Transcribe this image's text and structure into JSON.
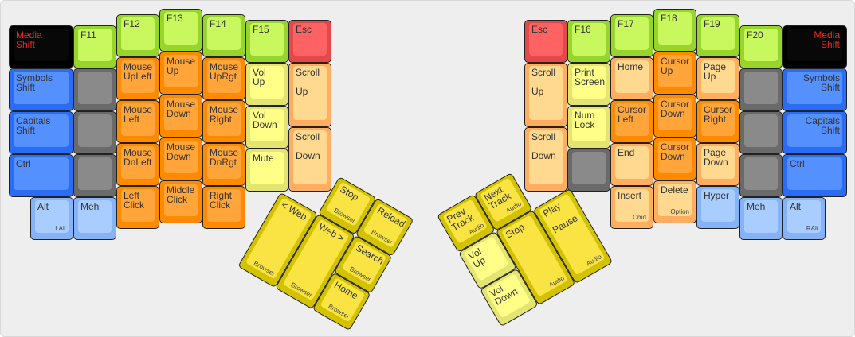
{
  "palette": {
    "green": [
      "#97d52c",
      "#c8f75e"
    ],
    "orange": [
      "#ff8a00",
      "#ffa53a"
    ],
    "lightorange": [
      "#ffae60",
      "#ffd98f"
    ],
    "lightyellow": [
      "#e4e470",
      "#ffff88"
    ],
    "blue": [
      "#2a6cf6",
      "#5590ff"
    ],
    "lightblue": [
      "#86b2f8",
      "#a9cdff"
    ],
    "grey": [
      "#6a6a6a",
      "#8a8a8a"
    ],
    "black": [
      "#000000",
      "#080808"
    ],
    "red": [
      "#e44848",
      "#ff6262"
    ],
    "yellow": [
      "#d2c200",
      "#f9e443"
    ],
    "black_text": "#e8281e"
  },
  "left_hand": {
    "keys": [
      {
        "label": "Media\nShift",
        "color": "black"
      },
      {
        "label": "Symbols\nShift",
        "color": "blue"
      },
      {
        "label": "Capitals\nShift",
        "color": "blue"
      },
      {
        "label": "Ctrl",
        "color": "blue"
      },
      {
        "label": "Alt",
        "sub": "LAlt",
        "color": "lightblue"
      },
      {
        "label": "F11",
        "color": "green"
      },
      {
        "label": "",
        "color": "grey"
      },
      {
        "label": "",
        "color": "grey"
      },
      {
        "label": "",
        "color": "grey"
      },
      {
        "label": "Meh",
        "color": "lightblue"
      },
      {
        "label": "F12",
        "color": "green"
      },
      {
        "label": "Mouse\nUpLeft",
        "color": "orange"
      },
      {
        "label": "Mouse\nLeft",
        "color": "orange"
      },
      {
        "label": "Mouse\nDnLeft",
        "color": "orange"
      },
      {
        "label": "Left\nClick",
        "color": "orange"
      },
      {
        "label": "F13",
        "color": "green"
      },
      {
        "label": "Mouse\nUp",
        "color": "orange"
      },
      {
        "label": "Mouse\nDown",
        "color": "orange"
      },
      {
        "label": "Mouse\nDown",
        "color": "orange"
      },
      {
        "label": "Middle\nClick",
        "color": "orange"
      },
      {
        "label": "F14",
        "color": "green"
      },
      {
        "label": "Mouse\nUpRgt",
        "color": "orange"
      },
      {
        "label": "Mouse\nRight",
        "color": "orange"
      },
      {
        "label": "Mouse\nDnRgt",
        "color": "orange"
      },
      {
        "label": "Right\nClick",
        "color": "orange"
      },
      {
        "label": "F15",
        "color": "green"
      },
      {
        "label": "Vol\nUp",
        "color": "lightyellow"
      },
      {
        "label": "Vol\nDown",
        "color": "lightyellow"
      },
      {
        "label": "Mute",
        "color": "lightyellow"
      },
      {
        "label": "Esc",
        "color": "red"
      },
      {
        "label": "Scroll\n\nUp",
        "color": "lightorange"
      },
      {
        "label": "Scroll\n\nDown",
        "color": "lightorange"
      }
    ],
    "thumb": [
      {
        "label": "Stop",
        "sub": "Browser",
        "color": "yellow"
      },
      {
        "label": "Reload",
        "sub": "Browser",
        "color": "yellow"
      },
      {
        "label": "< Web",
        "sub": "Browser",
        "color": "yellow"
      },
      {
        "label": "Web >",
        "sub": "Browser",
        "color": "yellow"
      },
      {
        "label": "Search",
        "sub": "Browser",
        "color": "yellow"
      },
      {
        "label": "Home",
        "sub": "Browser",
        "color": "yellow"
      }
    ]
  },
  "right_hand": {
    "keys": [
      {
        "label": "Esc",
        "color": "red"
      },
      {
        "label": "Scroll\n\nUp",
        "color": "lightorange"
      },
      {
        "label": "Scroll\n\nDown",
        "color": "lightorange"
      },
      {
        "label": "F16",
        "color": "green"
      },
      {
        "label": "Print\nScreen",
        "color": "lightyellow"
      },
      {
        "label": "Num\nLock",
        "color": "lightyellow"
      },
      {
        "label": "",
        "color": "grey"
      },
      {
        "label": "F17",
        "color": "green"
      },
      {
        "label": "Home",
        "color": "lightorange"
      },
      {
        "label": "Cursor\nLeft",
        "color": "orange"
      },
      {
        "label": "End",
        "color": "lightorange"
      },
      {
        "label": "Insert",
        "sub": "Cmd",
        "color": "lightorange"
      },
      {
        "label": "F18",
        "color": "green"
      },
      {
        "label": "Cursor\nUp",
        "color": "orange"
      },
      {
        "label": "Cursor\nDown",
        "color": "orange"
      },
      {
        "label": "Cursor\nDown",
        "color": "orange"
      },
      {
        "label": "Delete",
        "sub": "Option",
        "color": "lightorange"
      },
      {
        "label": "F19",
        "color": "green"
      },
      {
        "label": "Page\nUp",
        "color": "lightorange"
      },
      {
        "label": "Cursor\nRight",
        "color": "orange"
      },
      {
        "label": "Page\nDown",
        "color": "lightorange"
      },
      {
        "label": "Hyper",
        "color": "lightblue"
      },
      {
        "label": "F20",
        "color": "green"
      },
      {
        "label": "",
        "color": "grey"
      },
      {
        "label": "",
        "color": "grey"
      },
      {
        "label": "",
        "color": "grey"
      },
      {
        "label": "Meh",
        "color": "lightblue"
      },
      {
        "label": "Media\nShift",
        "color": "black"
      },
      {
        "label": "Symbols\nShift",
        "color": "blue"
      },
      {
        "label": "Capitals\nShift",
        "color": "blue"
      },
      {
        "label": "Ctrl",
        "color": "blue"
      },
      {
        "label": "Alt",
        "sub": "RAlt",
        "color": "lightblue"
      }
    ],
    "thumb": [
      {
        "label": "Prev\nTrack",
        "sub": "Audio",
        "color": "yellow"
      },
      {
        "label": "Next\nTrack",
        "sub": "Audio",
        "color": "yellow"
      },
      {
        "label": "Vol\nUp",
        "color": "lightyellow"
      },
      {
        "label": "Vol\nDown",
        "color": "lightyellow"
      },
      {
        "label": "Stop",
        "sub": "Audio",
        "color": "yellow"
      },
      {
        "label": "Play\n\nPause",
        "sub": "Audio",
        "color": "yellow"
      }
    ]
  }
}
